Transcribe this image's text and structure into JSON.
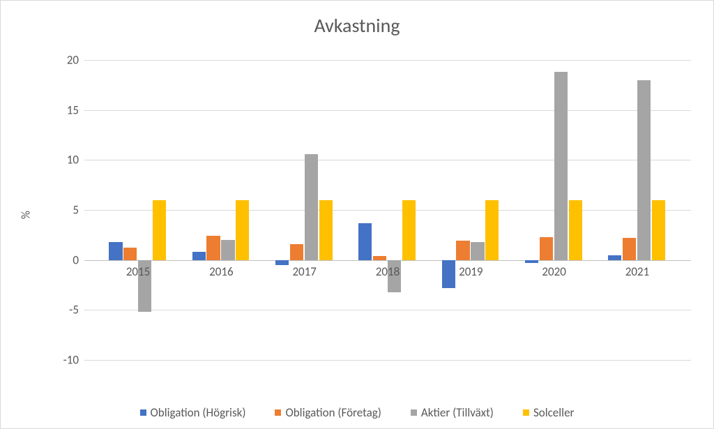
{
  "chart": {
    "type": "bar",
    "title": "Avkastning",
    "title_fontsize": 28,
    "title_color": "#595959",
    "y_axis_title": "%",
    "axis_label_fontsize": 17,
    "tick_fontsize": 17,
    "tick_color": "#595959",
    "background_color": "#ffffff",
    "border_color": "#d9d9d9",
    "grid_color": "#d9d9d9",
    "zero_line_color": "#bfbfbf",
    "ylim": [
      -10,
      20
    ],
    "ytick_step": 5,
    "categories": [
      "2015",
      "2016",
      "2017",
      "2018",
      "2019",
      "2020",
      "2021"
    ],
    "series": [
      {
        "name": "Obligation (Högrisk)",
        "color": "#4472c4",
        "values": [
          1.8,
          0.8,
          -0.5,
          3.7,
          -2.8,
          -0.3,
          0.5
        ]
      },
      {
        "name": "Obligation (Företag)",
        "color": "#ed7d31",
        "values": [
          1.2,
          2.4,
          1.6,
          0.4,
          1.9,
          2.3,
          2.2
        ]
      },
      {
        "name": "Aktier (Tillväxt)",
        "color": "#a5a5a5",
        "values": [
          -5.2,
          2.0,
          10.6,
          -3.2,
          1.8,
          18.8,
          18.0
        ]
      },
      {
        "name": "Solceller",
        "color": "#ffc000",
        "values": [
          6.0,
          6.0,
          6.0,
          6.0,
          6.0,
          6.0,
          6.0
        ]
      }
    ],
    "legend_fontsize": 17,
    "bar_gap_ratio": 0.3,
    "plot_left_pad_ratio": 0.02
  }
}
